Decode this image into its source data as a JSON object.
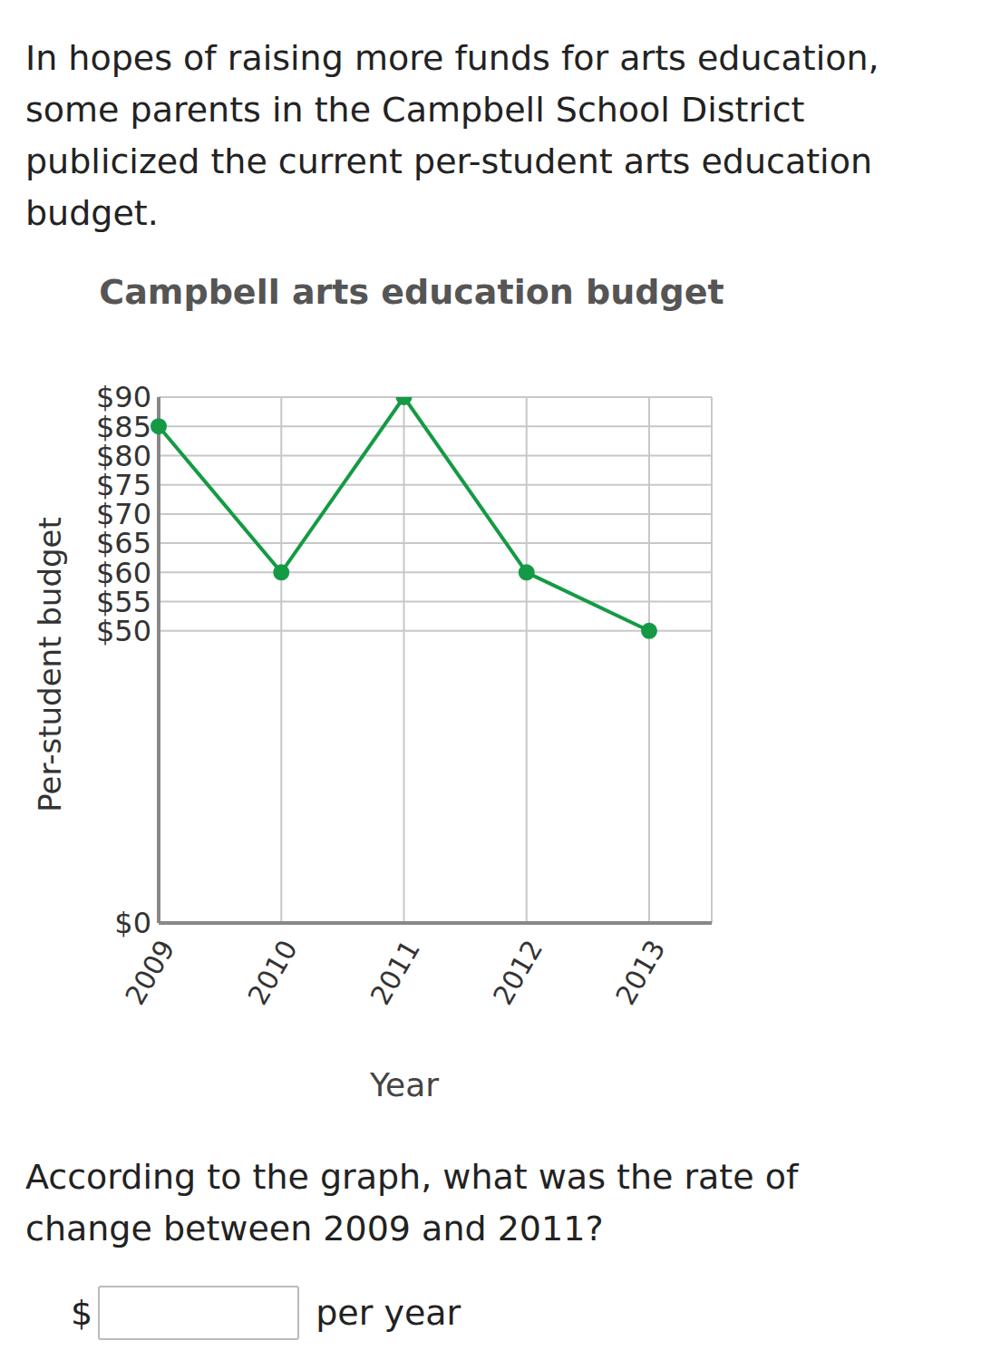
{
  "intro": "In hopes of raising more funds for arts education, some parents in the Campbell School District publicized the current per-student arts education budget.",
  "question": "According to the graph, what was the rate of change between 2009 and 2011?",
  "answer_prefix": "$",
  "answer_suffix": "per year",
  "chart_data": {
    "type": "line",
    "title": "Campbell arts education budget",
    "x_label": "Year",
    "y_label": "Per-student budget",
    "categories": [
      "2009",
      "2010",
      "2011",
      "2012",
      "2013"
    ],
    "values": [
      85,
      60,
      90,
      60,
      50
    ],
    "color": "#149a45",
    "ylim": [
      0,
      90
    ],
    "yticks": [
      {
        "value": 0,
        "label": "$0"
      },
      {
        "value": 50,
        "label": "$50"
      },
      {
        "value": 55,
        "label": "$55"
      },
      {
        "value": 60,
        "label": "$60"
      },
      {
        "value": 65,
        "label": "$65"
      },
      {
        "value": 70,
        "label": "$70"
      },
      {
        "value": 75,
        "label": "$75"
      },
      {
        "value": 80,
        "label": "$80"
      },
      {
        "value": 85,
        "label": "$85"
      },
      {
        "value": 90,
        "label": "$90"
      }
    ],
    "grid": true,
    "marker": "circle"
  }
}
